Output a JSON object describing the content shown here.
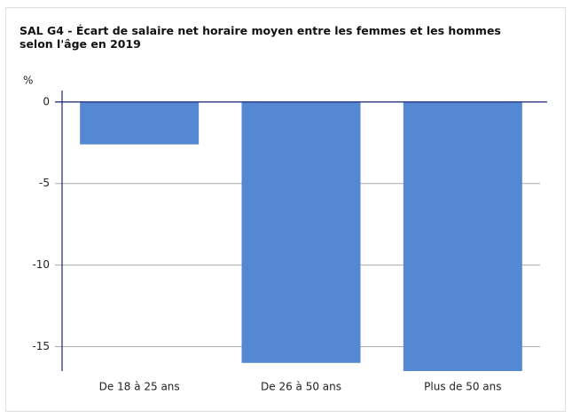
{
  "chart_data": {
    "type": "bar",
    "title": "SAL G4 - Écart de salaire net horaire moyen entre les femmes et les hommes selon l'âge en 2019",
    "y_label": "%",
    "categories": [
      "De 18 à 25 ans",
      "De 26 à 50 ans",
      "Plus de 50 ans"
    ],
    "values": [
      -2.6,
      -16.0,
      -16.5
    ],
    "color": "#5588d3",
    "ylim": [
      -16.5,
      0.7
    ],
    "yticks": [
      -15,
      -10,
      -5,
      0
    ],
    "grid": true
  }
}
